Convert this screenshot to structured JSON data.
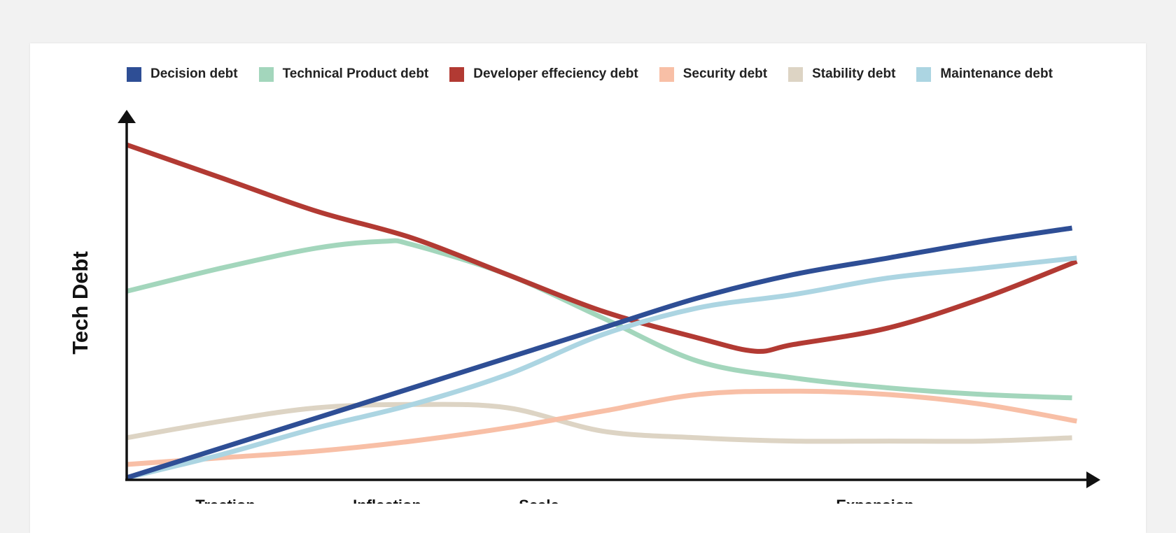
{
  "chart_data": {
    "type": "line",
    "ylabel": "Tech Debt",
    "xlabel": "",
    "y_ticks_shown": false,
    "x_ticks_shown": false,
    "grid": false,
    "legend_position": "top",
    "xlim": [
      0,
      100
    ],
    "ylim": [
      0,
      100
    ],
    "x_categories": [
      "Traction",
      "Inflection",
      "Scale",
      "Expansion"
    ],
    "series": [
      {
        "name": "Decision debt",
        "color": "#2e4e95",
        "x": [
          0,
          10,
          20,
          30,
          40,
          50,
          60,
          70,
          80,
          90,
          99.3
        ],
        "values": [
          0,
          9,
          18,
          27,
          36,
          45,
          54,
          61,
          66,
          71,
          75
        ]
      },
      {
        "name": "Technical Product debt",
        "color": "#a3d6bc",
        "x": [
          0,
          10,
          20,
          27,
          30,
          40,
          50,
          60,
          70,
          80,
          90,
          99.3
        ],
        "values": [
          56,
          63,
          69,
          71,
          70,
          61,
          48,
          35,
          30,
          27,
          25,
          24
        ]
      },
      {
        "name": "Developer effeciency debt",
        "color": "#b23a33",
        "x": [
          0,
          10,
          20,
          30,
          40,
          50,
          60,
          66,
          70,
          80,
          90,
          99.8
        ],
        "values": [
          100,
          90,
          80,
          72,
          61,
          50,
          42,
          38,
          40,
          45,
          54,
          65
        ]
      },
      {
        "name": "Security debt",
        "color": "#f8bfa6",
        "x": [
          0,
          10,
          20,
          30,
          40,
          50,
          60,
          70,
          80,
          90,
          99.8
        ],
        "values": [
          4,
          6,
          8,
          11,
          15,
          20,
          25,
          26,
          25,
          22,
          17
        ]
      },
      {
        "name": "Stability debt",
        "color": "#ddd4c4",
        "x": [
          0,
          10,
          20,
          30,
          40,
          50,
          60,
          70,
          80,
          90,
          99.3
        ],
        "values": [
          12,
          17,
          21,
          22,
          21,
          14,
          12,
          11,
          11,
          11,
          12
        ]
      },
      {
        "name": "Maintenance debt",
        "color": "#acd5e2",
        "x": [
          0,
          10,
          20,
          30,
          40,
          50,
          60,
          70,
          80,
          90,
          99.8
        ],
        "values": [
          0,
          7,
          15,
          22,
          31,
          43,
          51,
          55,
          60,
          63,
          66
        ]
      }
    ]
  }
}
